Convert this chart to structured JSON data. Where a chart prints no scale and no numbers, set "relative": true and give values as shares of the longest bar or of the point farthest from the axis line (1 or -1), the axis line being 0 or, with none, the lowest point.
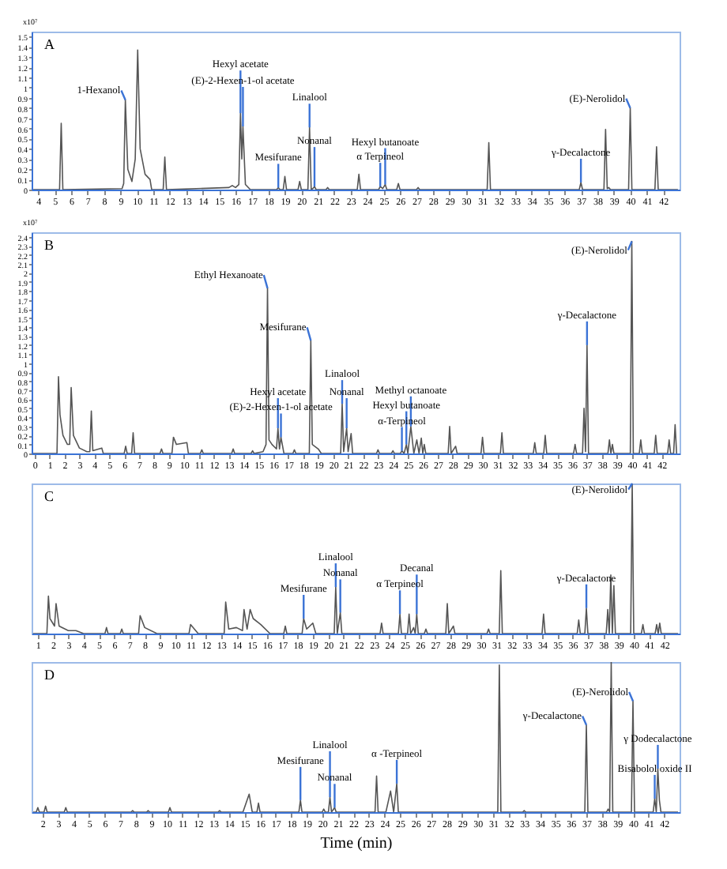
{
  "chart_data": [
    {
      "type": "line",
      "title": "A",
      "ylabel": "x10⁷",
      "xlim": [
        3.6,
        43
      ],
      "xticks": [
        4,
        5,
        6,
        7,
        8,
        9,
        10,
        11,
        12,
        13,
        14,
        15,
        16,
        17,
        18,
        19,
        20,
        21,
        22,
        23,
        24,
        25,
        26,
        27,
        28,
        29,
        30,
        31,
        32,
        33,
        34,
        35,
        36,
        37,
        38,
        39,
        40,
        41,
        42
      ],
      "ylim": [
        0,
        1.55
      ],
      "yticks": [
        0,
        0.1,
        0.2,
        0.3,
        0.4,
        0.5,
        0.6,
        0.7,
        0.8,
        0.9,
        1,
        1.1,
        1.2,
        1.3,
        1.4,
        1.5
      ],
      "x": [
        3.7,
        5.3,
        5.4,
        5.5,
        9.1,
        9.2,
        9.3,
        9.45,
        9.7,
        9.9,
        10.05,
        10.2,
        10.5,
        10.8,
        10.9,
        11.6,
        11.7,
        11.8,
        15.6,
        15.8,
        16.0,
        16.2,
        16.3,
        16.38,
        16.45,
        16.6,
        16.9,
        18.5,
        18.6,
        18.7,
        18.9,
        19.0,
        19.1,
        19.8,
        19.9,
        20.0,
        20.4,
        20.5,
        20.6,
        20.7,
        20.8,
        20.9,
        21.5,
        21.6,
        21.7,
        23.4,
        23.5,
        23.6,
        24.7,
        24.8,
        24.95,
        25.1,
        25.2,
        25.8,
        25.9,
        26.0,
        27.0,
        27.1,
        27.2,
        31.3,
        31.4,
        31.5,
        36.9,
        37.0,
        37.1,
        38.4,
        38.5,
        38.6,
        38.7,
        38.8,
        39.9,
        40.0,
        40.1,
        41.5,
        41.6,
        41.7,
        42.9
      ],
      "series": [
        {
          "color": "#555555",
          "values": [
            0,
            0,
            0.65,
            0,
            0.01,
            0.06,
            0.88,
            0.2,
            0.08,
            0.3,
            1.37,
            0.4,
            0.15,
            0.1,
            0,
            0,
            0.32,
            0,
            0.02,
            0.04,
            0.02,
            0.05,
            0.75,
            0.3,
            0.62,
            0.05,
            0,
            0,
            0.02,
            0,
            0,
            0.13,
            0,
            0,
            0.08,
            0,
            0,
            0.61,
            0,
            0.01,
            0.03,
            0,
            0,
            0.02,
            0,
            0,
            0.15,
            0,
            0,
            0.03,
            0.01,
            0.05,
            0,
            0,
            0.06,
            0,
            0,
            0.02,
            0,
            0,
            0.46,
            0,
            0,
            0.07,
            0,
            0,
            0.59,
            0.01,
            0.02,
            0,
            0,
            0.8,
            0,
            0,
            0.42,
            0,
            0
          ]
        }
      ],
      "annotations": [
        {
          "text": "1-Hexanol",
          "x": 9.3,
          "y": 0.88
        },
        {
          "text": "Hexyl acetate",
          "x": 16.3,
          "y": 0.75
        },
        {
          "text": "(E)-2-Hexen-1-ol acetate",
          "x": 16.45,
          "y": 0.62
        },
        {
          "text": "Mesifurane",
          "x": 18.6,
          "y": 0.02
        },
        {
          "text": "Linalool",
          "x": 20.5,
          "y": 0.61
        },
        {
          "text": "Nonanal",
          "x": 20.8,
          "y": 0.03
        },
        {
          "text": "α Terpineol",
          "x": 24.8,
          "y": 0.03
        },
        {
          "text": "Hexyl butanoate",
          "x": 25.1,
          "y": 0.05
        },
        {
          "text": "γ-Decalactone",
          "x": 37.0,
          "y": 0.07
        },
        {
          "text": "(E)-Nerolidol",
          "x": 40.0,
          "y": 0.8
        }
      ]
    },
    {
      "type": "line",
      "title": "B",
      "ylabel": "x10⁷",
      "xlim": [
        -0.2,
        43.2
      ],
      "xticks": [
        0,
        1,
        2,
        3,
        4,
        5,
        6,
        7,
        8,
        9,
        10,
        11,
        12,
        13,
        14,
        15,
        16,
        17,
        18,
        19,
        20,
        21,
        22,
        23,
        24,
        25,
        26,
        27,
        28,
        29,
        30,
        31,
        32,
        33,
        34,
        35,
        36,
        37,
        38,
        39,
        40,
        41,
        42
      ],
      "ylim": [
        0,
        2.45
      ],
      "yticks": [
        0,
        0.1,
        0.2,
        0.3,
        0.4,
        0.5,
        0.6,
        0.7,
        0.8,
        0.9,
        1,
        1.1,
        1.2,
        1.3,
        1.4,
        1.5,
        1.6,
        1.7,
        1.8,
        1.9,
        2,
        2.1,
        2.2,
        2.3,
        2.4
      ],
      "x": [
        -0.1,
        1.5,
        1.6,
        1.7,
        1.9,
        2.2,
        2.35,
        2.45,
        2.6,
        3.0,
        3.5,
        3.7,
        3.8,
        3.9,
        4.5,
        4.6,
        6.0,
        6.1,
        6.2,
        6.5,
        6.6,
        6.7,
        8.4,
        8.5,
        8.6,
        9.2,
        9.3,
        9.5,
        10.2,
        10.3,
        11.1,
        11.2,
        11.3,
        13.2,
        13.3,
        13.4,
        14.5,
        14.6,
        14.7,
        15.3,
        15.5,
        15.6,
        15.7,
        15.9,
        16.2,
        16.3,
        16.4,
        16.5,
        16.7,
        17.3,
        17.4,
        17.5,
        18.4,
        18.5,
        18.6,
        19.0,
        19.2,
        20.5,
        20.6,
        20.7,
        20.9,
        21.0,
        21.2,
        21.3,
        22.9,
        23.0,
        23.1,
        23.9,
        24.0,
        24.1,
        24.5,
        24.6,
        24.75,
        24.9,
        25.0,
        25.2,
        25.4,
        25.6,
        25.75,
        25.9,
        26.0,
        26.1,
        26.2,
        27.7,
        27.8,
        27.9,
        28.2,
        28.3,
        29.9,
        30.0,
        30.1,
        31.2,
        31.3,
        31.4,
        33.4,
        33.5,
        33.6,
        34.1,
        34.2,
        34.3,
        36.1,
        36.2,
        36.3,
        36.7,
        36.8,
        36.9,
        37.0,
        37.1,
        38.4,
        38.5,
        38.6,
        38.7,
        38.8,
        39.9,
        40.0,
        40.1,
        40.5,
        40.6,
        40.7,
        41.5,
        41.6,
        41.7,
        42.4,
        42.5,
        42.6,
        42.8,
        42.9,
        43.0
      ],
      "series": [
        {
          "color": "#555555",
          "values": [
            0,
            0,
            0.85,
            0.43,
            0.2,
            0.1,
            0.1,
            0.73,
            0.2,
            0.06,
            0.02,
            0.02,
            0.47,
            0.03,
            0.06,
            0,
            0,
            0.08,
            0,
            0,
            0.23,
            0,
            0,
            0.05,
            0,
            0,
            0.18,
            0.1,
            0.12,
            0,
            0,
            0.04,
            0,
            0,
            0.05,
            0,
            0,
            0.03,
            0,
            0.02,
            0.1,
            1.83,
            0.15,
            0.1,
            0.05,
            0.28,
            0.05,
            0.18,
            0,
            0,
            0.04,
            0,
            0,
            1.25,
            0.1,
            0.05,
            0,
            0,
            0.55,
            0.02,
            0.28,
            0.02,
            0.22,
            0,
            0,
            0.04,
            0,
            0,
            0.03,
            0,
            0,
            0.03,
            0,
            0.1,
            0,
            0.3,
            0,
            0.15,
            0,
            0.17,
            0,
            0.1,
            0,
            0,
            0.3,
            0,
            0.08,
            0,
            0,
            0.18,
            0,
            0,
            0.23,
            0,
            0,
            0.12,
            0,
            0,
            0.2,
            0,
            0,
            0.1,
            0,
            0,
            0.5,
            0.02,
            1.2,
            0,
            0,
            0.15,
            0,
            0.1,
            0,
            0,
            2.35,
            0,
            0,
            0.15,
            0,
            0,
            0.2,
            0,
            0,
            0.15,
            0,
            0,
            0.32,
            0
          ]
        }
      ],
      "annotations": [
        {
          "text": "Ethyl Hexanoate",
          "x": 15.6,
          "y": 1.83
        },
        {
          "text": "Hexyl acetate",
          "x": 16.3,
          "y": 0.28
        },
        {
          "text": "(E)-2-Hexen-1-ol acetate",
          "x": 16.5,
          "y": 0.18
        },
        {
          "text": "Mesifurane",
          "x": 18.5,
          "y": 1.25
        },
        {
          "text": "Linalool",
          "x": 20.6,
          "y": 0.55
        },
        {
          "text": "Nonanal",
          "x": 20.9,
          "y": 0.28
        },
        {
          "text": "α-Terpineol",
          "x": 24.6,
          "y": 0.03
        },
        {
          "text": "Hexyl butanoate",
          "x": 24.9,
          "y": 0.1
        },
        {
          "text": "Methyl octanoate",
          "x": 25.2,
          "y": 0.3
        },
        {
          "text": "γ-Decalactone",
          "x": 37.0,
          "y": 1.2
        },
        {
          "text": "(E)-Nerolidol",
          "x": 40.0,
          "y": 2.35
        }
      ]
    },
    {
      "type": "line",
      "title": "C",
      "relative": true,
      "xlim": [
        0.6,
        43
      ],
      "xticks": [
        1,
        2,
        3,
        4,
        5,
        6,
        7,
        8,
        9,
        10,
        11,
        12,
        13,
        14,
        15,
        16,
        17,
        18,
        19,
        20,
        21,
        22,
        23,
        24,
        25,
        26,
        27,
        28,
        29,
        30,
        31,
        32,
        33,
        34,
        35,
        36,
        37,
        38,
        39,
        40,
        41,
        42
      ],
      "x": [
        0.7,
        1.6,
        1.7,
        1.8,
        2.1,
        2.2,
        2.4,
        3.0,
        3.5,
        4.0,
        5.4,
        5.5,
        5.6,
        6.4,
        6.5,
        6.6,
        7.6,
        7.7,
        8.0,
        8.8,
        10.9,
        11.0,
        11.5,
        13.2,
        13.3,
        13.5,
        14.0,
        14.4,
        14.5,
        14.7,
        14.9,
        15.1,
        15.6,
        16.2,
        17.1,
        17.2,
        17.3,
        18.3,
        18.4,
        18.6,
        19.0,
        19.2,
        20.4,
        20.5,
        20.6,
        20.8,
        20.9,
        23.4,
        23.5,
        23.6,
        24.6,
        24.7,
        24.8,
        25.2,
        25.3,
        25.4,
        25.6,
        25.7,
        25.8,
        25.9,
        26.3,
        26.4,
        26.5,
        27.7,
        27.8,
        27.9,
        28.2,
        28.3,
        30.4,
        30.5,
        30.6,
        31.2,
        31.3,
        31.4,
        34.0,
        34.1,
        34.2,
        36.3,
        36.4,
        36.5,
        36.8,
        36.9,
        37.0,
        38.2,
        38.3,
        38.4,
        38.5,
        38.6,
        38.7,
        38.8,
        39.8,
        39.9,
        40.0,
        40.5,
        40.6,
        40.7,
        41.4,
        41.5,
        41.6,
        41.7,
        41.8,
        42.9
      ],
      "series": [
        {
          "color": "#555555",
          "values": [
            0,
            0,
            0.25,
            0.1,
            0.05,
            0.2,
            0.05,
            0.02,
            0.02,
            0,
            0,
            0.04,
            0,
            0,
            0.03,
            0,
            0,
            0.12,
            0.04,
            0,
            0,
            0.06,
            0,
            0,
            0.21,
            0.03,
            0.04,
            0.02,
            0.16,
            0.03,
            0.16,
            0.1,
            0.06,
            0,
            0,
            0.05,
            0,
            0,
            0.1,
            0.03,
            0.07,
            0,
            0,
            0.31,
            0,
            0.14,
            0,
            0,
            0.07,
            0,
            0,
            0.13,
            0,
            0,
            0.13,
            0,
            0.04,
            0,
            0.13,
            0,
            0,
            0.03,
            0,
            0,
            0.2,
            0,
            0.05,
            0,
            0,
            0.03,
            0,
            0,
            0.42,
            0,
            0,
            0.13,
            0,
            0,
            0.09,
            0,
            0,
            0.17,
            0,
            0,
            0.16,
            0,
            0.39,
            0,
            0.32,
            0,
            0,
            1,
            0,
            0,
            0.06,
            0,
            0,
            0.06,
            0,
            0.07,
            0,
            0
          ]
        }
      ],
      "annotations": [
        {
          "text": "Mesifurane",
          "x": 18.4,
          "y": 0.1
        },
        {
          "text": "Linalool",
          "x": 20.5,
          "y": 0.31
        },
        {
          "text": "Nonanal",
          "x": 20.8,
          "y": 0.14
        },
        {
          "text": "α Terpineol",
          "x": 24.7,
          "y": 0.13
        },
        {
          "text": "Decanal",
          "x": 25.8,
          "y": 0.13
        },
        {
          "text": "γ-Decalactone",
          "x": 36.9,
          "y": 0.17
        },
        {
          "text": "(E)-Nerolidol",
          "x": 39.9,
          "y": 1
        }
      ]
    },
    {
      "type": "line",
      "title": "D",
      "relative": true,
      "xlabel": "Time (min)",
      "xlim": [
        1.3,
        43
      ],
      "xticks": [
        2,
        3,
        4,
        5,
        6,
        7,
        8,
        9,
        10,
        11,
        12,
        13,
        14,
        15,
        16,
        17,
        18,
        19,
        20,
        21,
        22,
        23,
        24,
        25,
        26,
        27,
        28,
        29,
        30,
        31,
        32,
        33,
        34,
        35,
        36,
        37,
        38,
        39,
        40,
        41,
        42
      ],
      "x": [
        1.4,
        1.6,
        1.7,
        1.8,
        2.1,
        2.2,
        2.3,
        3.4,
        3.5,
        3.6,
        7.7,
        7.8,
        7.9,
        8.7,
        8.8,
        8.9,
        10.1,
        10.2,
        10.3,
        13.3,
        13.4,
        13.5,
        14.9,
        15.3,
        15.5,
        15.8,
        15.9,
        16.0,
        18.5,
        18.6,
        18.7,
        20.0,
        20.1,
        20.2,
        20.4,
        20.5,
        20.6,
        20.8,
        20.9,
        23.4,
        23.5,
        23.6,
        24.1,
        24.4,
        24.6,
        24.8,
        24.9,
        31.3,
        31.4,
        31.5,
        32.9,
        33.0,
        33.1,
        36.9,
        37.0,
        37.1,
        38.3,
        38.4,
        38.5,
        38.6,
        38.7,
        39.9,
        40.0,
        40.1,
        41.3,
        41.4,
        41.5,
        41.6,
        41.7,
        41.8,
        42.9
      ],
      "series": [
        {
          "color": "#555555",
          "values": [
            0,
            0,
            0.03,
            0,
            0,
            0.04,
            0,
            0,
            0.03,
            0,
            0,
            0.01,
            0,
            0,
            0.01,
            0,
            0,
            0.03,
            0,
            0,
            0.01,
            0,
            0,
            0.12,
            0,
            0,
            0.06,
            0,
            0,
            0.08,
            0,
            0,
            0.02,
            0,
            0,
            0.1,
            0,
            0.03,
            0,
            0,
            0.24,
            0,
            0,
            0.14,
            0,
            0.19,
            0,
            0,
            0.98,
            0,
            0,
            0.01,
            0,
            0,
            0.58,
            0,
            0,
            0.02,
            0,
            1,
            0,
            0,
            0.74,
            0,
            0,
            0.09,
            0,
            0.29,
            0.08,
            0,
            0
          ]
        }
      ],
      "annotations": [
        {
          "text": "Mesifurane",
          "x": 18.6,
          "y": 0.08
        },
        {
          "text": "Linalool",
          "x": 20.5,
          "y": 0.1
        },
        {
          "text": "Nonanal",
          "x": 20.8,
          "y": 0.03
        },
        {
          "text": "α -Terpineol",
          "x": 24.8,
          "y": 0.19
        },
        {
          "text": "γ-Decalactone",
          "x": 37.0,
          "y": 0.58
        },
        {
          "text": "(E)-Nerolidol",
          "x": 40.0,
          "y": 0.74
        },
        {
          "text": "Bisabolol oxide II",
          "x": 41.4,
          "y": 0.09
        },
        {
          "text": "γ Dodecalactone",
          "x": 41.6,
          "y": 0.29
        }
      ]
    }
  ]
}
